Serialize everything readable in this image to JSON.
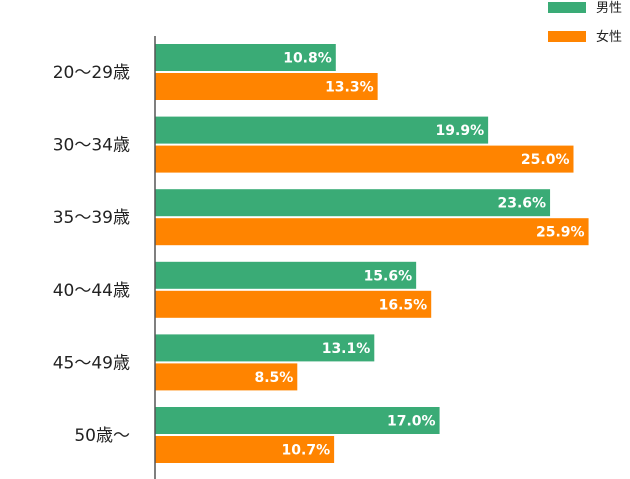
{
  "chart_data": {
    "type": "bar",
    "orientation": "horizontal",
    "categories": [
      "20〜29歳",
      "30〜34歳",
      "35〜39歳",
      "40〜44歳",
      "45〜49歳",
      "50歳〜"
    ],
    "series": [
      {
        "name": "男性",
        "color": "#3aab76",
        "values": [
          10.8,
          19.9,
          23.6,
          15.6,
          13.1,
          17.0
        ],
        "labels": [
          "10.8%",
          "19.9%",
          "23.6%",
          "15.6%",
          "13.1%",
          "17.0%"
        ]
      },
      {
        "name": "女性",
        "color": "#ff8400",
        "values": [
          13.3,
          25.0,
          25.9,
          16.5,
          8.5,
          10.7
        ],
        "labels": [
          "13.3%",
          "25.0%",
          "25.9%",
          "16.5%",
          "8.5%",
          "10.7%"
        ]
      }
    ],
    "xlim": [
      0,
      30
    ],
    "grid": false,
    "legend_position": "top-right",
    "axis_color": "#555555"
  }
}
